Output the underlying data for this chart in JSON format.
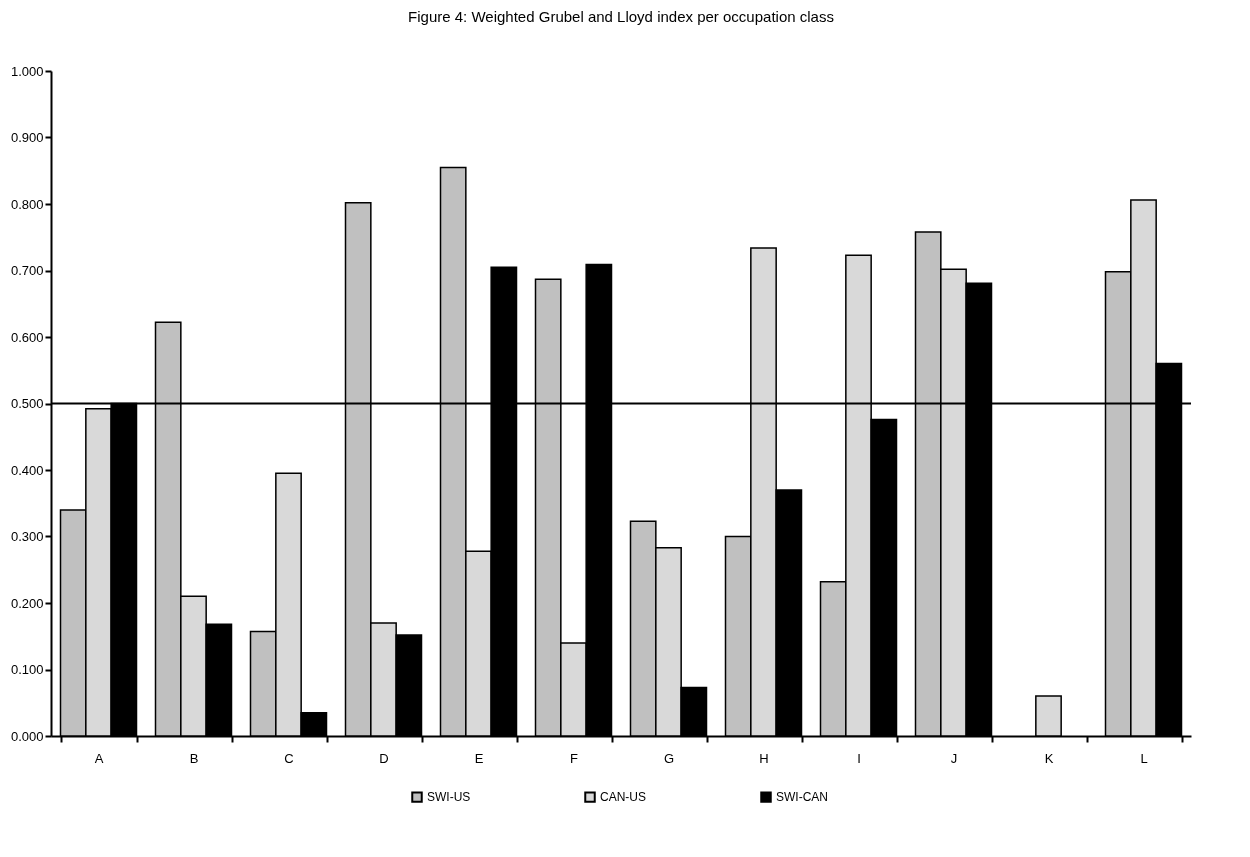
{
  "chart_data": {
    "type": "bar",
    "title": "Figure 4: Weighted Grubel and Lloyd index per occupation class",
    "categories": [
      "A",
      "B",
      "C",
      "D",
      "E",
      "F",
      "G",
      "H",
      "I",
      "J",
      "K",
      "L"
    ],
    "series": [
      {
        "name": "SWI-US",
        "color": "#c0c0c0",
        "values": [
          0.34,
          0.622,
          0.157,
          0.802,
          0.855,
          0.687,
          0.323,
          0.3,
          0.232,
          0.758,
          null,
          0.698
        ]
      },
      {
        "name": "CAN-US",
        "color": "#d9d9d9",
        "values": [
          0.492,
          0.21,
          0.395,
          0.17,
          0.278,
          0.14,
          0.283,
          0.734,
          0.723,
          0.702,
          0.06,
          0.806
        ]
      },
      {
        "name": "SWI-CAN",
        "color": "#000000",
        "values": [
          0.5,
          0.168,
          0.035,
          0.152,
          0.705,
          0.709,
          0.073,
          0.37,
          0.476,
          0.681,
          null,
          0.56
        ]
      }
    ],
    "ylim": [
      0,
      1
    ],
    "yticks": [
      {
        "value": 0,
        "label": "0.000"
      },
      {
        "value": 0.1,
        "label": "0.100"
      },
      {
        "value": 0.2,
        "label": "0.200"
      },
      {
        "value": 0.3,
        "label": "0.300"
      },
      {
        "value": 0.4,
        "label": "0.400"
      },
      {
        "value": 0.5,
        "label": "0.500"
      },
      {
        "value": 0.6,
        "label": "0.600"
      },
      {
        "value": 0.7,
        "label": "0.700"
      },
      {
        "value": 0.8,
        "label": "0.800"
      },
      {
        "value": 0.9,
        "label": "0.900"
      },
      {
        "value": 1,
        "label": "1.000"
      }
    ],
    "ref_lines": [
      {
        "axis": "y",
        "value": 0.5,
        "color": "#000000"
      }
    ],
    "grid": false,
    "legend": "bottom"
  }
}
